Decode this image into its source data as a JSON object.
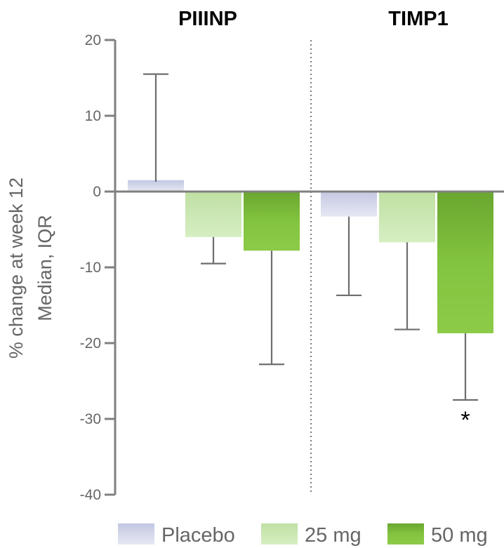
{
  "chart_data": {
    "type": "bar",
    "ylabel_lines": [
      "% change at week 12",
      "Median, IQR"
    ],
    "ylim": [
      -40,
      20
    ],
    "yticks": [
      20,
      10,
      0,
      -10,
      -20,
      -30,
      -40
    ],
    "panels": [
      {
        "title": "PIIINP",
        "bars": [
          {
            "series": "Placebo",
            "median": 1.5,
            "iqr_low": 1.3,
            "iqr_high": 15.5
          },
          {
            "series": "25 mg",
            "median": -6.0,
            "iqr_low": -9.5,
            "iqr_high": -6.0
          },
          {
            "series": "50 mg",
            "median": -7.8,
            "iqr_low": -22.8,
            "iqr_high": -7.8
          }
        ]
      },
      {
        "title": "TIMP1",
        "bars": [
          {
            "series": "Placebo",
            "median": -3.3,
            "iqr_low": -13.7,
            "iqr_high": -3.3
          },
          {
            "series": "25 mg",
            "median": -6.7,
            "iqr_low": -18.2,
            "iqr_high": -6.7
          },
          {
            "series": "50 mg",
            "median": -18.7,
            "iqr_low": -27.5,
            "iqr_high": -18.7,
            "annotation": "*"
          }
        ]
      }
    ],
    "series": [
      {
        "name": "Placebo",
        "color": "#d4d8ec"
      },
      {
        "name": "25 mg",
        "color": "#c7e6ad"
      },
      {
        "name": "50 mg",
        "color": "#7cbe3c"
      }
    ],
    "legend_position": "bottom",
    "panel_divider": "dotted vertical line"
  }
}
